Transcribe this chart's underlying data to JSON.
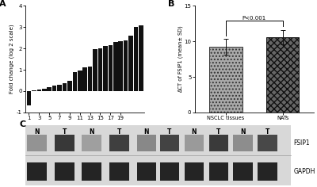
{
  "panel_A_label": "A",
  "panel_B_label": "B",
  "panel_C_label": "C",
  "bar_values": [
    -0.65,
    0.02,
    0.08,
    0.12,
    0.18,
    0.25,
    0.3,
    0.38,
    0.48,
    0.88,
    0.95,
    1.1,
    1.15,
    1.95,
    2.0,
    2.1,
    2.15,
    2.3,
    2.35,
    2.38,
    2.6,
    3.0,
    3.08
  ],
  "bar_xtick_labels": [
    "1",
    "3",
    "5",
    "7",
    "9",
    "11",
    "13",
    "15",
    "17",
    "19"
  ],
  "bar_ylim": [
    -1,
    4
  ],
  "bar_ylabel": "Fold change (log 2 scale)",
  "bar_color": "#111111",
  "panelB_values": [
    9.2,
    10.6
  ],
  "panelB_errors": [
    1.1,
    1.0
  ],
  "panelB_categories": [
    "NSCLC tissues",
    "NATs"
  ],
  "panelB_ylabel": "∆CT of FSIP1 (mean± SD)",
  "panelB_ylim": [
    0,
    15
  ],
  "panelB_yticks": [
    0,
    5,
    10,
    15
  ],
  "panelB_pvalue": "P<0.001",
  "panelC_N_labels": [
    "N",
    "T",
    "N",
    "T",
    "N",
    "T",
    "N",
    "T",
    "N",
    "T"
  ],
  "panelC_gene1": "FSIP1",
  "panelC_gene2": "GAPDH",
  "bg_color": "#ffffff",
  "fsip1_intensities": [
    0.55,
    0.15,
    0.6,
    0.18,
    0.5,
    0.2,
    0.58,
    0.16,
    0.52,
    0.22
  ],
  "gapdh_intensities": [
    0.12,
    0.12,
    0.12,
    0.12,
    0.12,
    0.12,
    0.12,
    0.12,
    0.12,
    0.12
  ]
}
